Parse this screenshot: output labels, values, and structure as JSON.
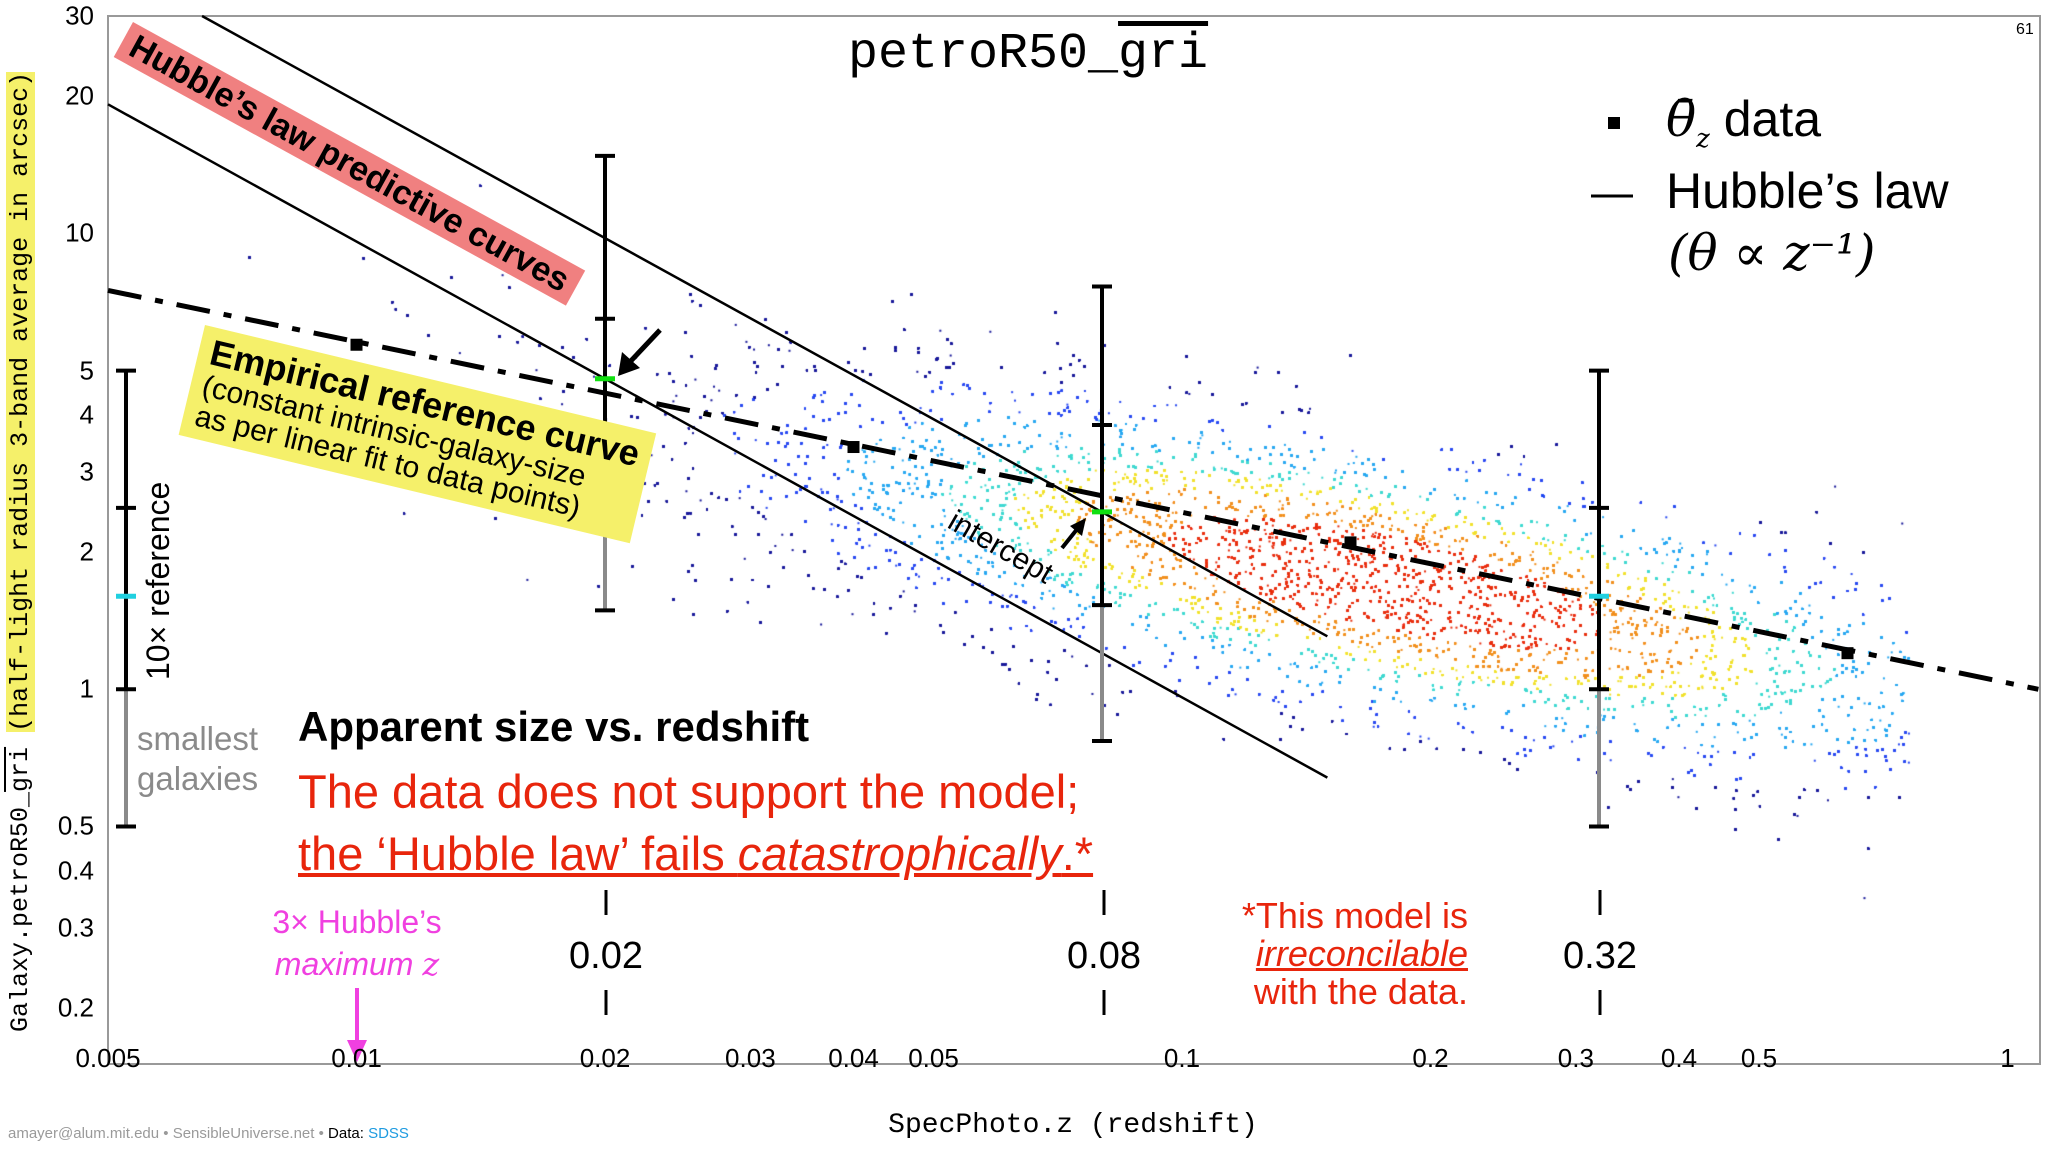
{
  "page_number": "61",
  "footer": {
    "credit": "amayer@alum.mit.edu • SensibleUniverse.net • ",
    "data_label": "Data: ",
    "data_source": "SDSS"
  },
  "colors": {
    "red_text": "#e8250c",
    "magenta": "#f040e0",
    "red_label_bg": "#f08080",
    "yellow_label_bg": "#f5f06a",
    "green_marker": "#10e010",
    "cyan_marker": "#20d0e0",
    "gray_bar": "#8a8a8a"
  },
  "annotations": {
    "hubble_label": "Hubble’s law predictive curves",
    "empirical_title": "Empirical reference curve",
    "empirical_line2": "(constant intrinsic-galaxy-size",
    "empirical_line3": "as per linear fit to data points)",
    "intercept": "intercept",
    "reference": "10× reference",
    "smallest_1": "smallest",
    "smallest_2": "galaxies",
    "headline": "Apparent size vs. redshift",
    "claim_1": "The data does not support the model;",
    "claim_2a": "the ‘Hubble law’ fails ",
    "claim_2b": "catastrophically",
    "claim_2c": ".*",
    "note_1": "*This model is",
    "note_2": "irreconcilable",
    "note_3": "with the data.",
    "hubble_max_1": "3× Hubble’s",
    "hubble_max_2": "maximum ",
    "hubble_max_z": "z",
    "bin_labels": [
      "0.02",
      "0.08",
      "0.32"
    ]
  },
  "legend": {
    "data_symbol": "θ̄",
    "data_sub": "z",
    "data_label": " data",
    "line_label": "Hubble’s law",
    "formula": "(θ ∝ z⁻¹)"
  },
  "chart_data": {
    "type": "scatter",
    "title_main": "petroR50_",
    "title_over": "gri",
    "xlabel": "SpecPhoto.z (redshift)",
    "ylabel_main": "Galaxy.petroR50_",
    "ylabel_over": "gri",
    "ylabel_note": "(half-light radius 3-band average in arcsec)",
    "xscale": "log",
    "yscale": "log",
    "xlim": [
      0.005,
      1.09
    ],
    "ylim": [
      0.15,
      30
    ],
    "xticks": [
      "0.005",
      "0.01",
      "0.02",
      "0.03",
      "0.04",
      "0.05",
      "0.1",
      "0.2",
      "0.3",
      "0.4",
      "0.5",
      "1"
    ],
    "yticks": [
      "30",
      "20",
      "10",
      "5",
      "4",
      "3",
      "2",
      "1",
      "0.5",
      "0.4",
      "0.3",
      "0.2"
    ],
    "legend_position": "top-right",
    "mean_points": [
      {
        "z": 0.01,
        "theta": 5.7
      },
      {
        "z": 0.04,
        "theta": 3.4
      },
      {
        "z": 0.16,
        "theta": 2.1
      },
      {
        "z": 0.64,
        "theta": 1.2
      }
    ],
    "error_bars": [
      {
        "z": 0.02,
        "top": 14.8,
        "upper": 6.5,
        "mid": 4.8,
        "lower": 2.96,
        "bottom": 1.49,
        "mid_color": "green"
      },
      {
        "z": 0.08,
        "top": 7.65,
        "upper": 3.8,
        "mid": 2.45,
        "lower": 1.53,
        "bottom": 0.77,
        "mid_color": "green"
      },
      {
        "z": 0.32,
        "top": 5.0,
        "upper": 2.5,
        "mid": 1.6,
        "lower": 1.0,
        "bottom": 0.5,
        "mid_color": "cyan"
      }
    ],
    "reference_bar": {
      "top": 5.0,
      "upper": 2.5,
      "mid": 1.6,
      "lower": 1.0,
      "bottom": 0.5
    },
    "linear_fit": {
      "z": [
        0.005,
        1.09
      ],
      "theta": [
        7.5,
        1.0
      ]
    },
    "hubble_lines": [
      {
        "k": 0.196,
        "z_range": [
          0.0065,
          0.15
        ]
      },
      {
        "k": 0.096,
        "z_range": [
          0.005,
          0.15
        ]
      }
    ],
    "hubble_max_marker_z": 0.01
  }
}
